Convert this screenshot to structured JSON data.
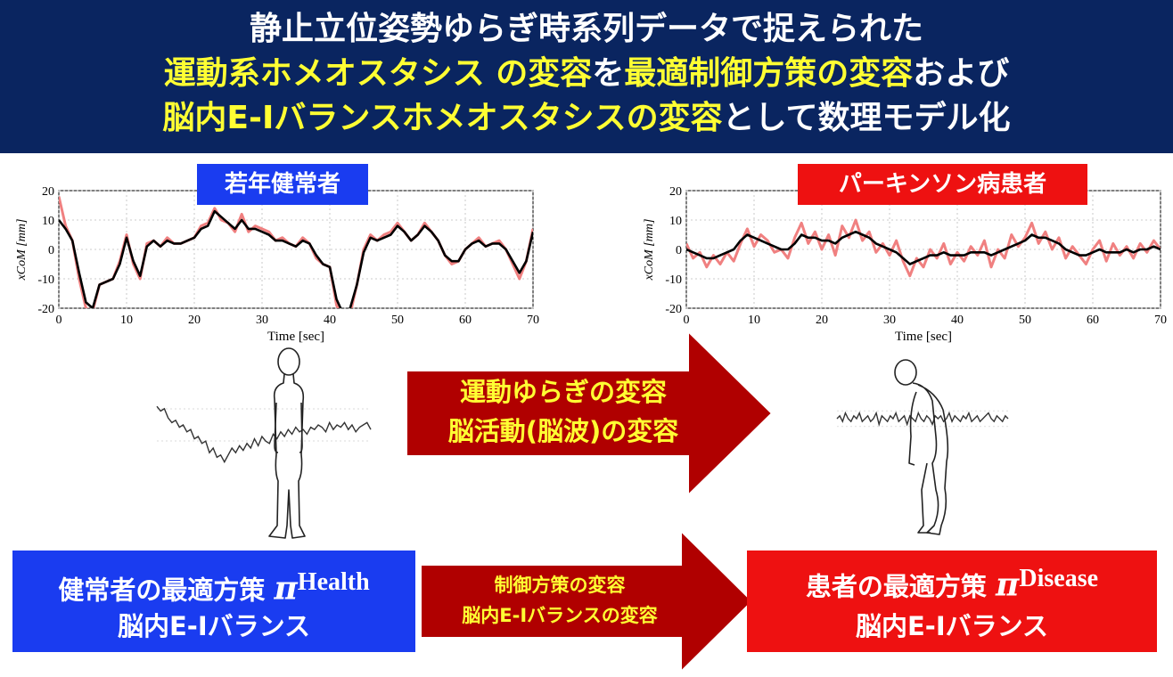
{
  "header": {
    "line1": "静止立位姿勢ゆらぎ時系列データで捉えられた",
    "line2_a": "運動系ホメオスタシス の変容",
    "line2_b": "を",
    "line2_c": "最適制御方策の変容",
    "line2_d": "および",
    "line3_a": "脳内E-Iバランスホメオスタシスの変容",
    "line3_b": "として数理モデル化"
  },
  "left_panel": {
    "tag": "若年健常者",
    "tag_color": "#1a3cf0",
    "ylabel": "xCoM [mm]",
    "xlabel": "Time [sec]"
  },
  "right_panel": {
    "tag": "パーキンソン病患者",
    "tag_color": "#ee1111",
    "ylabel": "xCoM [mm]",
    "xlabel": "Time [sec]"
  },
  "middle_arrow": {
    "line1": "運動ゆらぎの変容",
    "line2": "脳活動(脳波)の変容",
    "color": "#b00000"
  },
  "bottom_arrow": {
    "line1": "制御方策の変容",
    "line2": "脳内E-Iバランスの変容",
    "color": "#b00000"
  },
  "left_box": {
    "line1": "健常者の最適方策",
    "symbol": "π",
    "superscript": "Health",
    "line2": "脳内E-Iバランス",
    "color": "#1a3cf0"
  },
  "right_box": {
    "line1": "患者の最適方策",
    "symbol": "π",
    "superscript": "Disease",
    "line2": "脳内E-Iバランス",
    "color": "#ee1111"
  },
  "chart_data": [
    {
      "type": "line",
      "title": "若年健常者",
      "xlabel": "Time [sec]",
      "ylabel": "xCoM [mm]",
      "xlim": [
        0,
        70
      ],
      "ylim": [
        -20,
        20
      ],
      "xticks": [
        0,
        10,
        20,
        30,
        40,
        50,
        60,
        70
      ],
      "yticks": [
        -20,
        -10,
        0,
        10,
        20
      ],
      "grid": true,
      "series": [
        {
          "color": "#f08080",
          "x": [
            0,
            1,
            2,
            3,
            4,
            5,
            6,
            7,
            8,
            9,
            10,
            11,
            12,
            13,
            14,
            15,
            16,
            17,
            18,
            19,
            20,
            21,
            22,
            23,
            24,
            25,
            26,
            27,
            28,
            29,
            30,
            31,
            32,
            33,
            34,
            35,
            36,
            37,
            38,
            39,
            40,
            41,
            42,
            43,
            44,
            45,
            46,
            47,
            48,
            49,
            50,
            51,
            52,
            53,
            54,
            55,
            56,
            57,
            58,
            59,
            60,
            61,
            62,
            63,
            64,
            65,
            66,
            67,
            68,
            69,
            70
          ],
          "values": [
            18,
            8,
            3,
            -10,
            -20,
            -21,
            -12,
            -11,
            -10,
            -4,
            5,
            -5,
            -10,
            2,
            3,
            1,
            4,
            2,
            2,
            3,
            4,
            8,
            9,
            14,
            10,
            9,
            6,
            12,
            6,
            8,
            7,
            6,
            3,
            4,
            2,
            1,
            4,
            2,
            -3,
            -5,
            -6,
            -19,
            -24,
            -22,
            -12,
            0,
            5,
            3,
            5,
            6,
            9,
            6,
            3,
            5,
            9,
            6,
            3,
            -2,
            -5,
            -4,
            0,
            2,
            4,
            1,
            2,
            3,
            0,
            -5,
            -10,
            -4,
            7
          ]
        },
        {
          "color": "#000000",
          "x": [
            0,
            1,
            2,
            3,
            4,
            5,
            6,
            7,
            8,
            9,
            10,
            11,
            12,
            13,
            14,
            15,
            16,
            17,
            18,
            19,
            20,
            21,
            22,
            23,
            24,
            25,
            26,
            27,
            28,
            29,
            30,
            31,
            32,
            33,
            34,
            35,
            36,
            37,
            38,
            39,
            40,
            41,
            42,
            43,
            44,
            45,
            46,
            47,
            48,
            49,
            50,
            51,
            52,
            53,
            54,
            55,
            56,
            57,
            58,
            59,
            60,
            61,
            62,
            63,
            64,
            65,
            66,
            67,
            68,
            69,
            70
          ],
          "values": [
            10,
            7,
            3,
            -8,
            -18,
            -20,
            -12,
            -11,
            -10,
            -5,
            4,
            -4,
            -9,
            1,
            3,
            1,
            3,
            2,
            2,
            3,
            4,
            7,
            8,
            13,
            11,
            9,
            7,
            10,
            7,
            7,
            6,
            5,
            3,
            3,
            2,
            1,
            3,
            2,
            -2,
            -5,
            -6,
            -17,
            -22,
            -20,
            -12,
            -1,
            4,
            3,
            4,
            5,
            8,
            6,
            3,
            5,
            8,
            6,
            3,
            -2,
            -4,
            -4,
            0,
            2,
            3,
            1,
            2,
            2,
            0,
            -4,
            -8,
            -4,
            6
          ]
        }
      ]
    },
    {
      "type": "line",
      "title": "パーキンソン病患者",
      "xlabel": "Time [sec]",
      "ylabel": "xCoM [mm]",
      "xlim": [
        0,
        70
      ],
      "ylim": [
        -20,
        20
      ],
      "xticks": [
        0,
        10,
        20,
        30,
        40,
        50,
        60,
        70
      ],
      "yticks": [
        -20,
        -10,
        0,
        10,
        20
      ],
      "grid": true,
      "series": [
        {
          "color": "#f08080",
          "x": [
            0,
            1,
            2,
            3,
            4,
            5,
            6,
            7,
            8,
            9,
            10,
            11,
            12,
            13,
            14,
            15,
            16,
            17,
            18,
            19,
            20,
            21,
            22,
            23,
            24,
            25,
            26,
            27,
            28,
            29,
            30,
            31,
            32,
            33,
            34,
            35,
            36,
            37,
            38,
            39,
            40,
            41,
            42,
            43,
            44,
            45,
            46,
            47,
            48,
            49,
            50,
            51,
            52,
            53,
            54,
            55,
            56,
            57,
            58,
            59,
            60,
            61,
            62,
            63,
            64,
            65,
            66,
            67,
            68,
            69,
            70
          ],
          "values": [
            2,
            -3,
            -1,
            -6,
            -2,
            -5,
            -1,
            -4,
            2,
            7,
            1,
            5,
            3,
            -1,
            0,
            -3,
            4,
            9,
            2,
            6,
            0,
            5,
            -2,
            8,
            4,
            10,
            3,
            6,
            -1,
            2,
            -2,
            3,
            -4,
            -9,
            -3,
            -6,
            0,
            -3,
            2,
            -5,
            -1,
            -4,
            1,
            -2,
            3,
            -6,
            0,
            -3,
            5,
            1,
            4,
            9,
            2,
            6,
            0,
            4,
            -3,
            1,
            -2,
            -5,
            0,
            3,
            -4,
            2,
            -2,
            1,
            -3,
            2,
            -1,
            3,
            0
          ]
        },
        {
          "color": "#000000",
          "x": [
            0,
            1,
            2,
            3,
            4,
            5,
            6,
            7,
            8,
            9,
            10,
            11,
            12,
            13,
            14,
            15,
            16,
            17,
            18,
            19,
            20,
            21,
            22,
            23,
            24,
            25,
            26,
            27,
            28,
            29,
            30,
            31,
            32,
            33,
            34,
            35,
            36,
            37,
            38,
            39,
            40,
            41,
            42,
            43,
            44,
            45,
            46,
            47,
            48,
            49,
            50,
            51,
            52,
            53,
            54,
            55,
            56,
            57,
            58,
            59,
            60,
            61,
            62,
            63,
            64,
            65,
            66,
            67,
            68,
            69,
            70
          ],
          "values": [
            0,
            -1,
            -2,
            -3,
            -3,
            -2,
            -1,
            0,
            3,
            5,
            4,
            3,
            2,
            1,
            0,
            0,
            2,
            5,
            4,
            4,
            3,
            3,
            2,
            4,
            5,
            6,
            5,
            4,
            2,
            1,
            0,
            -1,
            -3,
            -5,
            -4,
            -3,
            -2,
            -2,
            -1,
            -2,
            -2,
            -2,
            -1,
            -1,
            -1,
            -2,
            -1,
            0,
            1,
            2,
            3,
            5,
            4,
            4,
            3,
            2,
            0,
            -1,
            -2,
            -2,
            -1,
            0,
            -1,
            -1,
            -1,
            0,
            -1,
            0,
            0,
            1,
            0
          ]
        }
      ]
    },
    {
      "type": "line",
      "title": "",
      "series": [
        {
          "color": "#333333",
          "values": [
            8,
            6,
            7,
            3,
            1,
            2,
            -1,
            0,
            -3,
            -2,
            -6,
            -5,
            -8,
            -7,
            -12,
            -10,
            -14,
            -13,
            -16,
            -13,
            -10,
            -12,
            -9,
            -11,
            -8,
            -10,
            -6,
            -9,
            -5,
            -7,
            -8,
            -4,
            -6,
            -3,
            -5,
            -2,
            -4,
            -1,
            -3,
            -2,
            -4,
            -1,
            -2,
            0,
            -1,
            -3,
            1,
            -2,
            0,
            -1,
            1,
            -2,
            0,
            -3,
            -1,
            0,
            1,
            -2
          ]
        }
      ]
    },
    {
      "type": "line",
      "title": "",
      "series": [
        {
          "color": "#333333",
          "values": [
            0,
            1,
            -1,
            2,
            0,
            -1,
            1,
            0,
            2,
            -1,
            0,
            1,
            -1,
            0,
            2,
            -2,
            1,
            0,
            -1,
            1,
            0,
            2,
            -1,
            0,
            1,
            -2,
            1,
            0,
            -1,
            2,
            0,
            -1,
            1,
            0,
            -2,
            1,
            0,
            1,
            -1,
            0,
            2,
            -1,
            1,
            0,
            -1,
            1,
            0,
            2,
            -1,
            0,
            1,
            -1,
            0,
            1,
            2,
            0,
            -1,
            1,
            0,
            -1,
            1,
            0
          ]
        }
      ]
    }
  ]
}
